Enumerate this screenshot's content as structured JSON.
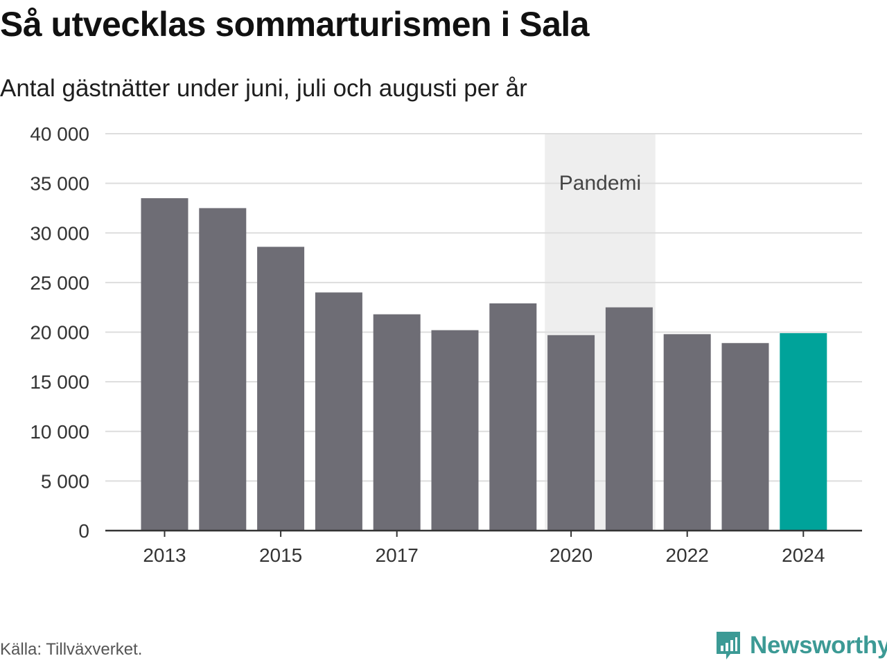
{
  "title": "Så utvecklas sommarturismen i Sala",
  "subtitle": "Antal gästnätter under juni, juli och augusti per år",
  "source": "Källa: Tillväxverket.",
  "brand": {
    "name": "Newsworthy",
    "icon": "newsworthy-logo-icon",
    "color": "#3c9a95"
  },
  "colors": {
    "bar": "#6e6d75",
    "highlight": "#00a39a",
    "band": "#eeeeee",
    "grid": "#dddddd",
    "axis": "#333333"
  },
  "chart_data": {
    "type": "bar",
    "categories": [
      "2013",
      "2014",
      "2015",
      "2016",
      "2017",
      "2018",
      "2019",
      "2020",
      "2021",
      "2022",
      "2023",
      "2024"
    ],
    "values": [
      33500,
      32500,
      28600,
      24000,
      21800,
      20200,
      22900,
      19700,
      22500,
      19800,
      18900,
      19900
    ],
    "highlight_index": 11,
    "y_ticks": [
      0,
      5000,
      10000,
      15000,
      20000,
      25000,
      30000,
      35000,
      40000
    ],
    "y_tick_labels": [
      "0",
      "5 000",
      "10 000",
      "15 000",
      "20 000",
      "25 000",
      "30 000",
      "35 000",
      "40 000"
    ],
    "x_tick_labels": [
      "2013",
      "2015",
      "2017",
      "2020",
      "2022",
      "2024"
    ],
    "ylim": [
      0,
      40000
    ],
    "grid": true,
    "annotation": {
      "label": "Pandemi",
      "from": "2020",
      "to": "2021"
    }
  }
}
